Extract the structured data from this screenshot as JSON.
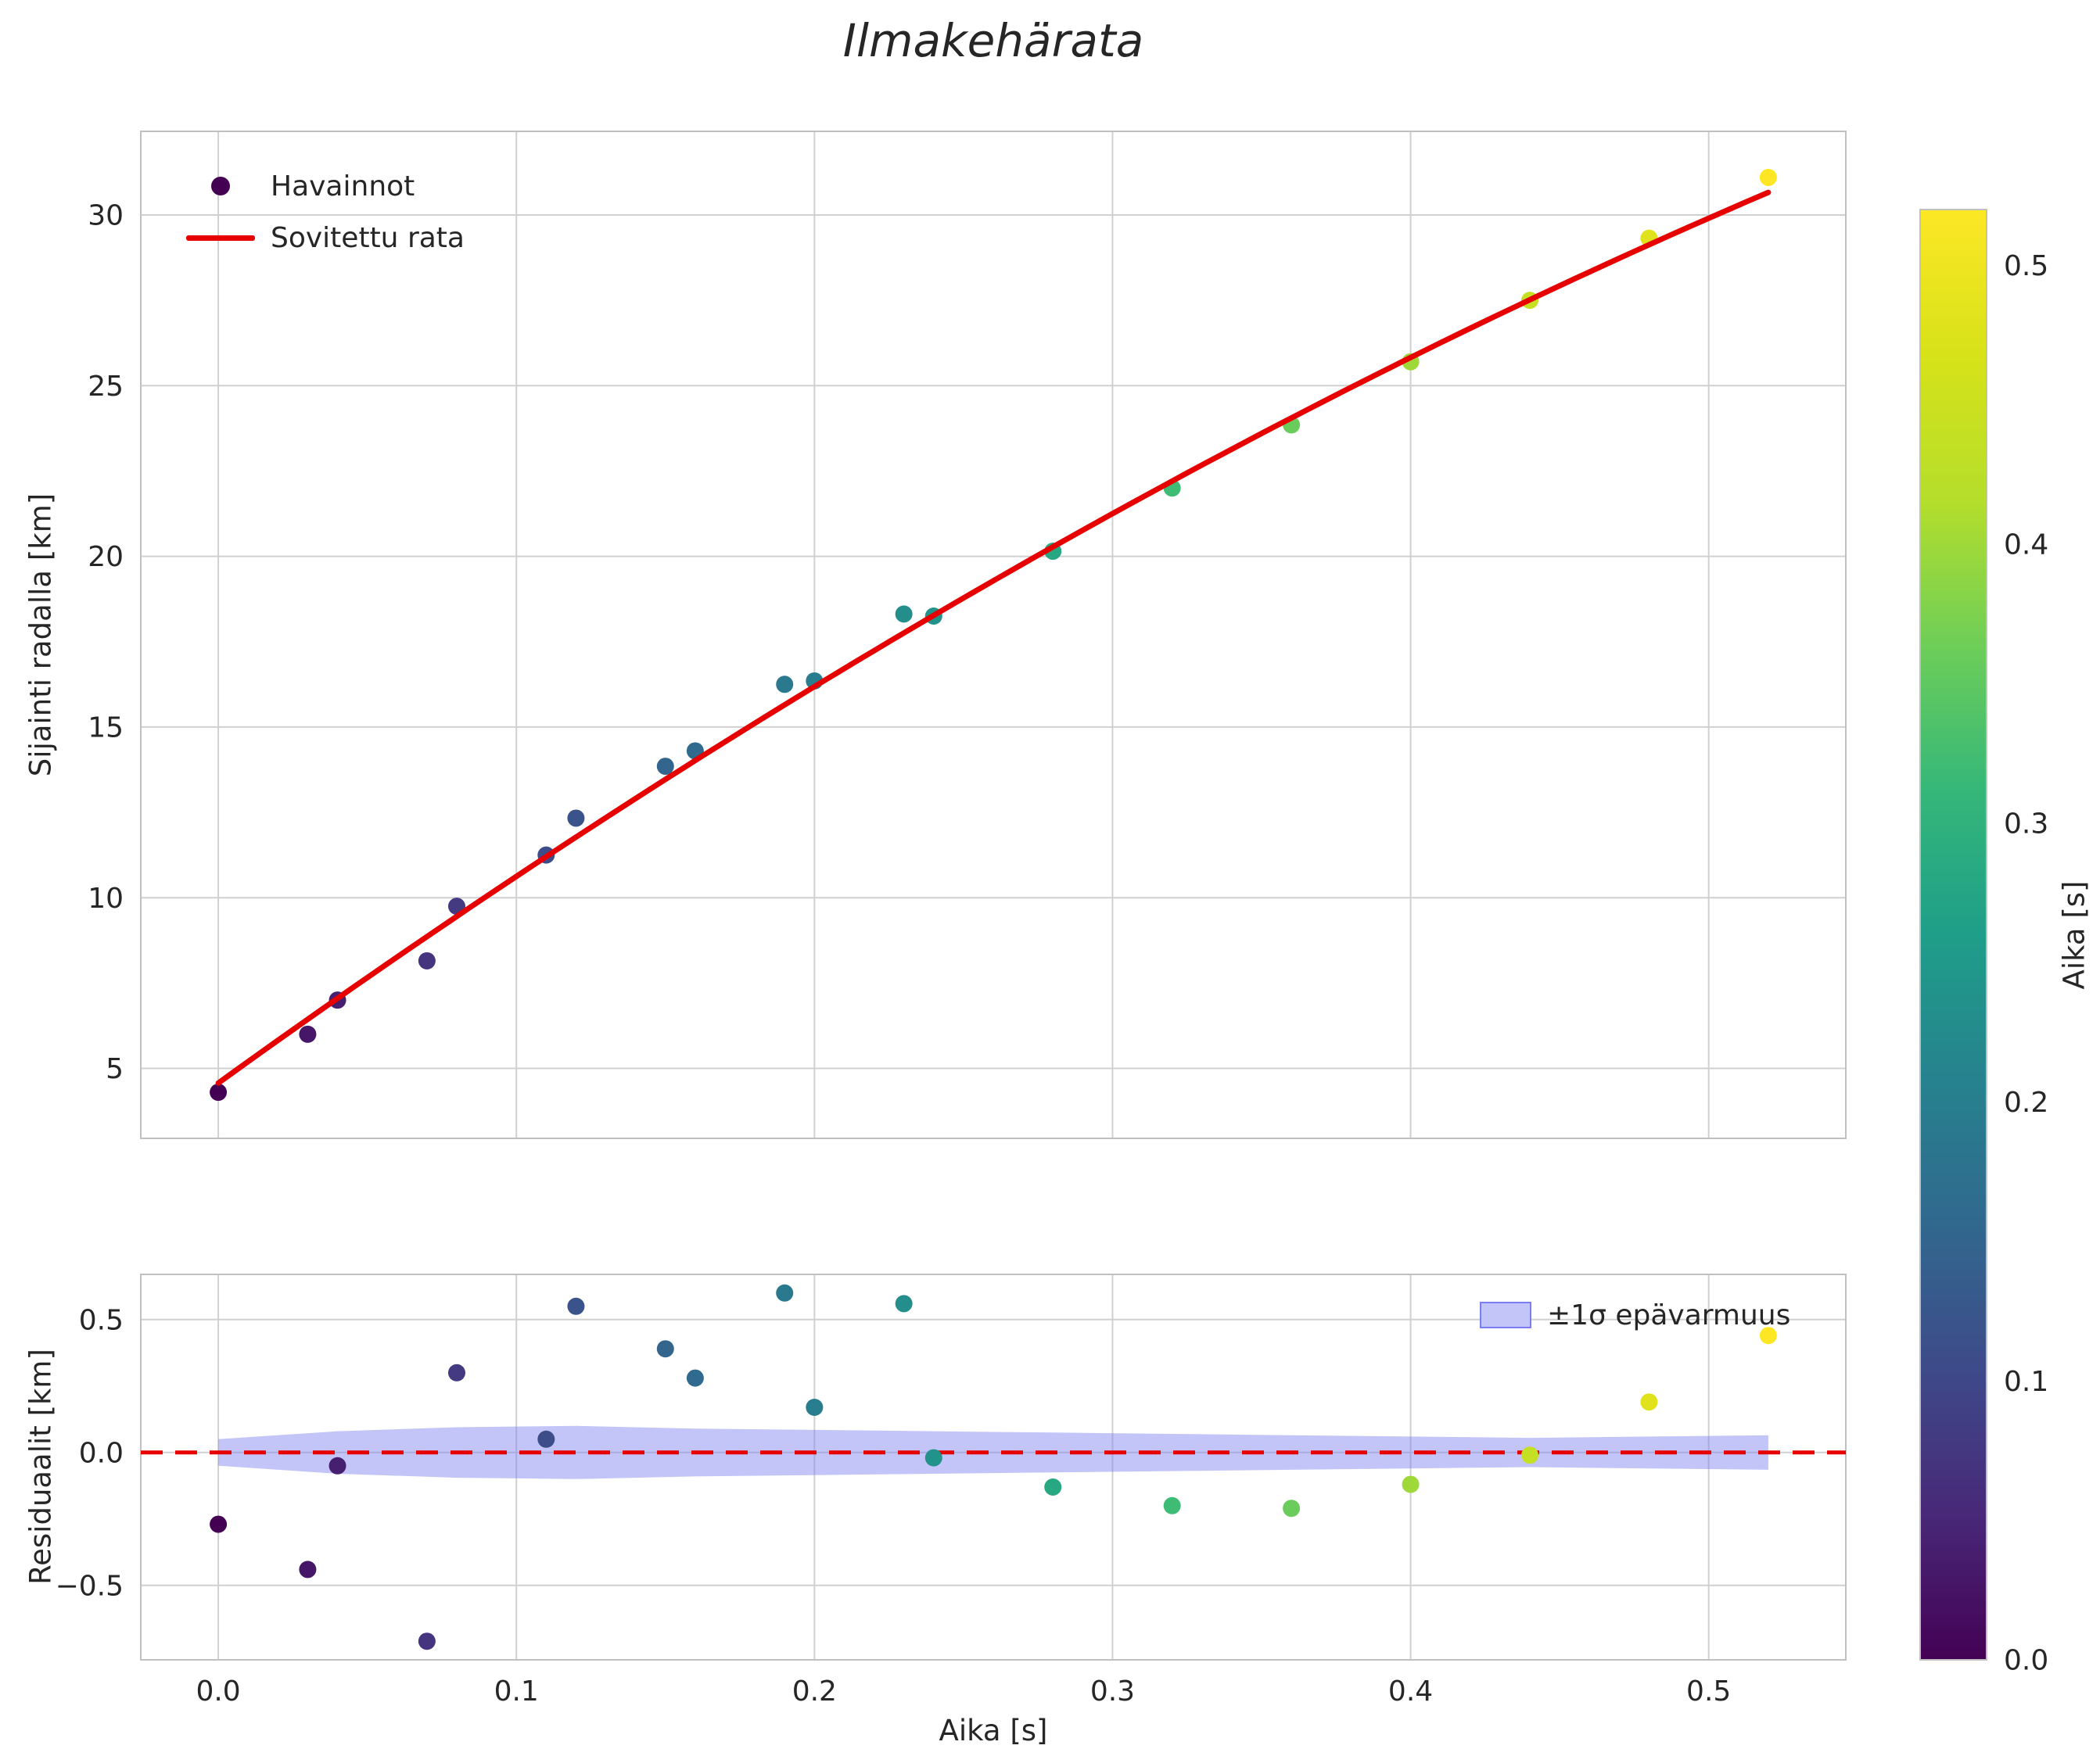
{
  "title": "Ilmakehärata",
  "colors": {
    "text": "#262626",
    "grid": "#d0d0d0",
    "spine": "#c0c0c0",
    "fit_line": "#e60000",
    "band_fill": "#7b7ef0",
    "band_opacity": 0.45,
    "band_legend_fill": "#c3c4f8",
    "band_legend_edge": "#7b7ef0",
    "legend_dot": "#440154",
    "viridis_stops": [
      "#440154",
      "#482878",
      "#3e4a89",
      "#31688e",
      "#26828e",
      "#1f9e89",
      "#35b779",
      "#6ece58",
      "#b5de2b",
      "#d7e219",
      "#fde725"
    ]
  },
  "chart_data": [
    {
      "type": "scatter",
      "name": "trajectory",
      "title": "Ilmakehärata",
      "xlabel": "Aika [s]",
      "ylabel": "Sijainti radalla [km]",
      "xlim": [
        -0.026,
        0.546
      ],
      "ylim": [
        2.95,
        32.45
      ],
      "xticks": [
        0.0,
        0.1,
        0.2,
        0.3,
        0.4,
        0.5
      ],
      "yticks": [
        5,
        10,
        15,
        20,
        25,
        30
      ],
      "grid": true,
      "legend_position": "upper left",
      "legend_scatter": "Havainnot",
      "legend_line": "Sovitettu rata",
      "x": [
        0.0,
        0.03,
        0.04,
        0.07,
        0.08,
        0.11,
        0.12,
        0.15,
        0.16,
        0.19,
        0.2,
        0.23,
        0.24,
        0.28,
        0.32,
        0.36,
        0.4,
        0.44,
        0.48,
        0.52
      ],
      "y": [
        4.3,
        6.0,
        7.0,
        8.15,
        9.75,
        11.25,
        12.33,
        13.85,
        14.3,
        16.25,
        16.35,
        18.31,
        18.25,
        20.15,
        22.0,
        23.85,
        25.7,
        27.5,
        29.32,
        31.1
      ],
      "fit": {
        "label": "Sovitettu rata",
        "model": "quadratic",
        "coeffs": [
          4.57,
          63.0,
          -24.66
        ],
        "t_min": 0.0,
        "t_max": 0.52
      }
    },
    {
      "type": "scatter",
      "name": "residuals",
      "xlabel": "Aika [s]",
      "ylabel": "Residuaalit [km]",
      "xlim": [
        -0.026,
        0.546
      ],
      "ylim": [
        -0.78,
        0.67
      ],
      "xticks": [
        0.0,
        0.1,
        0.2,
        0.3,
        0.4,
        0.5
      ],
      "yticks": [
        -0.5,
        0.0,
        0.5
      ],
      "grid": true,
      "zero_line": 0.0,
      "x": [
        0.0,
        0.03,
        0.04,
        0.07,
        0.08,
        0.11,
        0.12,
        0.15,
        0.16,
        0.19,
        0.2,
        0.23,
        0.24,
        0.28,
        0.32,
        0.36,
        0.4,
        0.44,
        0.48,
        0.52
      ],
      "y": [
        -0.27,
        -0.44,
        -0.05,
        -0.71,
        0.3,
        0.05,
        0.55,
        0.39,
        0.28,
        0.6,
        0.17,
        0.56,
        -0.02,
        -0.13,
        -0.2,
        -0.21,
        -0.12,
        -0.01,
        0.19,
        0.44
      ],
      "band": {
        "label": "±1σ epävarmuus",
        "x": [
          0.0,
          0.04,
          0.08,
          0.12,
          0.16,
          0.2,
          0.24,
          0.28,
          0.32,
          0.36,
          0.4,
          0.44,
          0.48,
          0.52
        ],
        "sigma": [
          0.05,
          0.08,
          0.095,
          0.1,
          0.09,
          0.085,
          0.08,
          0.075,
          0.07,
          0.065,
          0.06,
          0.055,
          0.06,
          0.065
        ]
      }
    }
  ],
  "colorbar": {
    "label": "Aika [s]",
    "vmin": 0.0,
    "vmax": 0.52,
    "ticks": [
      0.0,
      0.1,
      0.2,
      0.3,
      0.4,
      0.5
    ],
    "colormap": "viridis"
  }
}
